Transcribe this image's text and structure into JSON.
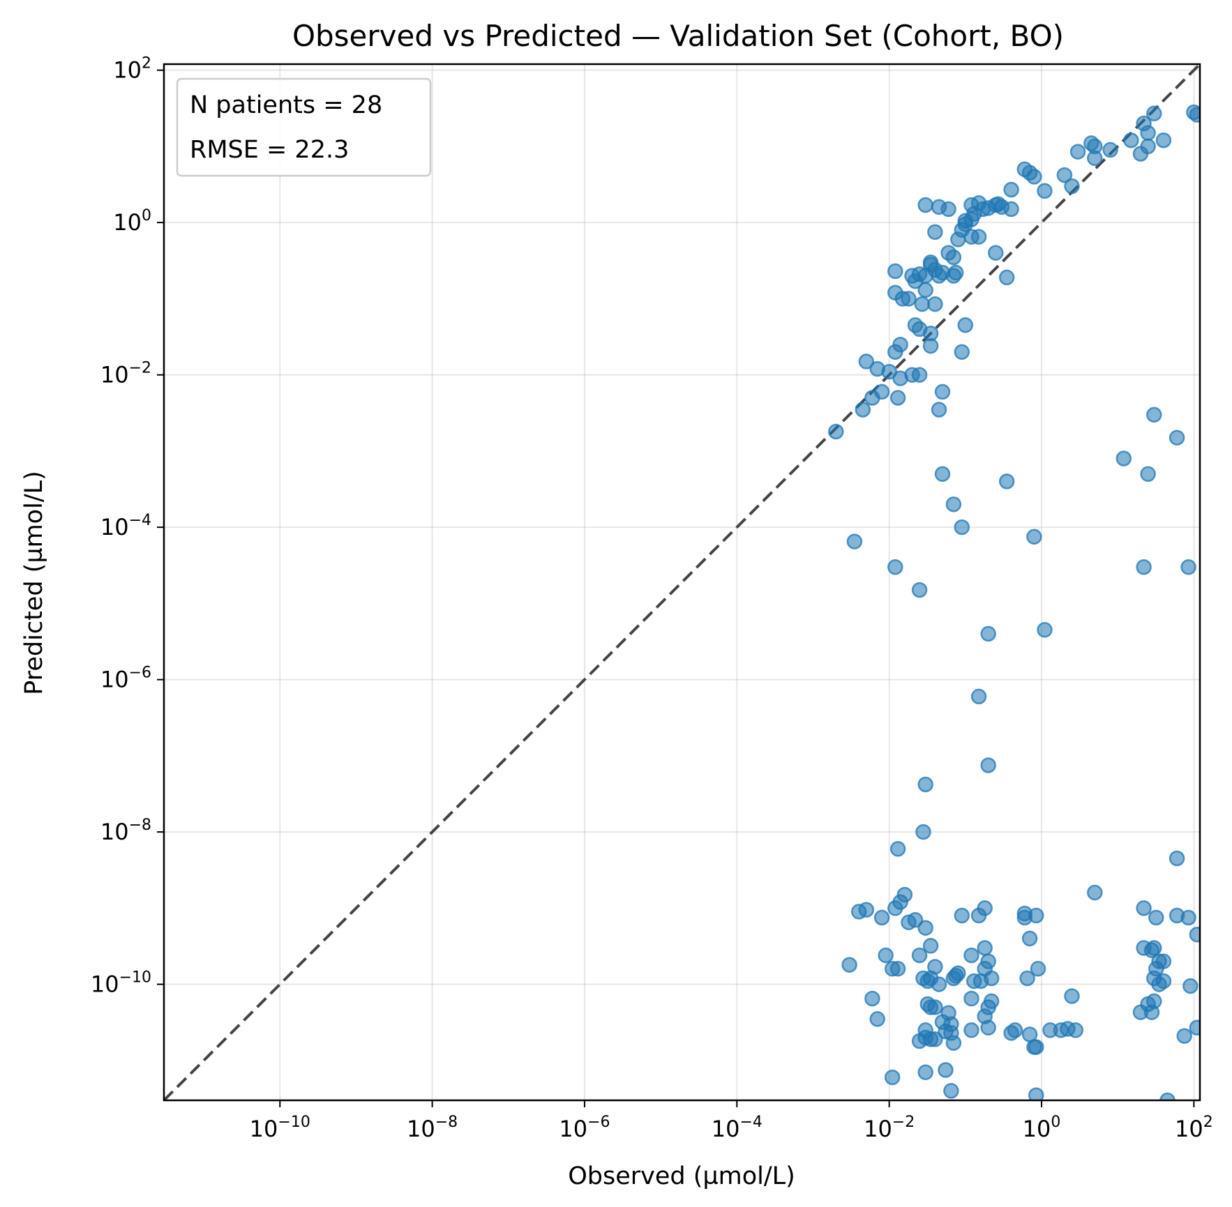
{
  "chart_data": {
    "type": "scatter",
    "title": "Observed vs Predicted — Validation Set (Cohort, BO)",
    "xlabel": "Observed (µmol/L)",
    "ylabel": "Predicted (µmol/L)",
    "xscale": "log",
    "yscale": "log",
    "xlim": [
      3e-12,
      120
    ],
    "ylim": [
      3e-12,
      120
    ],
    "x_ticks": [
      {
        "exp": 1e-10,
        "base": "10",
        "sup": "−10"
      },
      {
        "exp": 1e-08,
        "base": "10",
        "sup": "−8"
      },
      {
        "exp": 1e-06,
        "base": "10",
        "sup": "−6"
      },
      {
        "exp": 0.0001,
        "base": "10",
        "sup": "−4"
      },
      {
        "exp": 0.01,
        "base": "10",
        "sup": "−2"
      },
      {
        "exp": 1,
        "base": "10",
        "sup": "0"
      },
      {
        "exp": 100,
        "base": "10",
        "sup": "2"
      }
    ],
    "y_ticks": [
      {
        "exp": 1e-10,
        "base": "10",
        "sup": "−10"
      },
      {
        "exp": 1e-08,
        "base": "10",
        "sup": "−8"
      },
      {
        "exp": 1e-06,
        "base": "10",
        "sup": "−6"
      },
      {
        "exp": 0.0001,
        "base": "10",
        "sup": "−4"
      },
      {
        "exp": 0.01,
        "base": "10",
        "sup": "−2"
      },
      {
        "exp": 1,
        "base": "10",
        "sup": "0"
      },
      {
        "exp": 100,
        "base": "10",
        "sup": "2"
      }
    ],
    "grid": true,
    "legend": {
      "placement": "top-left",
      "lines": [
        "N patients = 28",
        "RMSE = 22.3"
      ]
    },
    "reference_line": {
      "type": "identity",
      "style": "dashed",
      "color": "#444444"
    },
    "marker_color": "#1f77b4",
    "series": [
      {
        "points": [
          [
            0.002,
            0.0018
          ],
          [
            0.0045,
            0.0035
          ],
          [
            0.006,
            0.005
          ],
          [
            0.008,
            0.006
          ],
          [
            0.005,
            0.015
          ],
          [
            0.007,
            0.012
          ],
          [
            0.01,
            0.011
          ],
          [
            0.013,
            0.005
          ],
          [
            0.014,
            0.009
          ],
          [
            0.012,
            0.02
          ],
          [
            0.014,
            0.025
          ],
          [
            0.02,
            0.01
          ],
          [
            0.025,
            0.01
          ],
          [
            0.022,
            0.045
          ],
          [
            0.025,
            0.04
          ],
          [
            0.035,
            0.024
          ],
          [
            0.035,
            0.035
          ],
          [
            0.05,
            0.006
          ],
          [
            0.045,
            0.0035
          ],
          [
            0.09,
            0.02
          ],
          [
            0.1,
            0.045
          ],
          [
            0.012,
            0.12
          ],
          [
            0.012,
            0.23
          ],
          [
            0.015,
            0.1
          ],
          [
            0.018,
            0.1
          ],
          [
            0.02,
            0.2
          ],
          [
            0.022,
            0.17
          ],
          [
            0.025,
            0.21
          ],
          [
            0.027,
            0.085
          ],
          [
            0.03,
            0.13
          ],
          [
            0.03,
            0.2
          ],
          [
            0.035,
            0.28
          ],
          [
            0.035,
            0.3
          ],
          [
            0.04,
            0.24
          ],
          [
            0.04,
            0.085
          ],
          [
            0.045,
            0.2
          ],
          [
            0.05,
            0.22
          ],
          [
            0.06,
            0.4
          ],
          [
            0.07,
            0.2
          ],
          [
            0.075,
            0.22
          ],
          [
            0.07,
            0.35
          ],
          [
            0.08,
            0.6
          ],
          [
            0.09,
            0.8
          ],
          [
            0.1,
            0.95
          ],
          [
            0.1,
            1.05
          ],
          [
            0.12,
            1.1
          ],
          [
            0.12,
            0.65
          ],
          [
            0.15,
            0.65
          ],
          [
            0.13,
            1.3
          ],
          [
            0.12,
            1.7
          ],
          [
            0.15,
            1.8
          ],
          [
            0.17,
            1.5
          ],
          [
            0.2,
            1.55
          ],
          [
            0.25,
            1.7
          ],
          [
            0.27,
            1.75
          ],
          [
            0.3,
            1.6
          ],
          [
            0.4,
            1.5
          ],
          [
            0.25,
            0.4
          ],
          [
            0.35,
            0.19
          ],
          [
            0.03,
            1.7
          ],
          [
            0.045,
            1.6
          ],
          [
            0.06,
            1.5
          ],
          [
            0.04,
            0.75
          ],
          [
            0.4,
            2.7
          ],
          [
            0.6,
            5
          ],
          [
            0.7,
            4.5
          ],
          [
            0.8,
            4
          ],
          [
            1.1,
            2.6
          ],
          [
            2,
            4.2
          ],
          [
            2.5,
            3
          ],
          [
            3,
            8.5
          ],
          [
            4.5,
            11
          ],
          [
            5,
            10
          ],
          [
            5,
            7
          ],
          [
            8,
            9
          ],
          [
            15,
            12
          ],
          [
            20,
            8
          ],
          [
            22,
            20
          ],
          [
            25,
            15
          ],
          [
            25,
            10
          ],
          [
            30,
            27
          ],
          [
            40,
            12
          ],
          [
            100,
            28
          ],
          [
            110,
            26
          ],
          [
            0.0035,
            6.5e-05
          ],
          [
            0.012,
            3e-05
          ],
          [
            0.025,
            1.5e-05
          ],
          [
            0.05,
            0.0005
          ],
          [
            0.07,
            0.0002
          ],
          [
            0.09,
            0.0001
          ],
          [
            0.35,
            0.0004
          ],
          [
            0.8,
            7.5e-05
          ],
          [
            0.2,
            4e-06
          ],
          [
            1.1,
            4.5e-06
          ],
          [
            0.15,
            6e-07
          ],
          [
            0.2,
            7.5e-08
          ],
          [
            12,
            0.0008
          ],
          [
            25,
            0.0005
          ],
          [
            22,
            3e-05
          ],
          [
            30,
            0.003
          ],
          [
            60,
            0.0015
          ],
          [
            85,
            3e-05
          ]
        ]
      },
      {
        "points": [
          [
            0.03,
            4.2e-08
          ],
          [
            0.028,
            1e-08
          ],
          [
            0.013,
            6e-09
          ],
          [
            0.016,
            1.5e-09
          ],
          [
            0.014,
            1.2e-09
          ],
          [
            0.012,
            1e-09
          ],
          [
            0.018,
            6.5e-10
          ],
          [
            0.022,
            7e-10
          ],
          [
            0.03,
            5.5e-10
          ],
          [
            0.004,
            9e-10
          ],
          [
            0.005,
            9.5e-10
          ],
          [
            0.008,
            7.5e-10
          ],
          [
            0.009,
            2.4e-10
          ],
          [
            0.011,
            1.6e-10
          ],
          [
            0.013,
            1.6e-10
          ],
          [
            0.025,
            2.4e-10
          ],
          [
            0.035,
            3.2e-10
          ],
          [
            0.04,
            1.7e-10
          ],
          [
            0.028,
            1.2e-10
          ],
          [
            0.032,
            1.1e-10
          ],
          [
            0.035,
            1.2e-10
          ],
          [
            0.045,
            1e-10
          ],
          [
            0.003,
            1.8e-10
          ],
          [
            0.006,
            6.5e-11
          ],
          [
            0.007,
            3.5e-11
          ],
          [
            0.032,
            5.5e-11
          ],
          [
            0.035,
            5e-11
          ],
          [
            0.04,
            5e-11
          ],
          [
            0.05,
            3.2e-11
          ],
          [
            0.055,
            2.4e-11
          ],
          [
            0.06,
            4.2e-11
          ],
          [
            0.065,
            3e-11
          ],
          [
            0.065,
            2.3e-11
          ],
          [
            0.07,
            1.7e-11
          ],
          [
            0.03,
            2.5e-11
          ],
          [
            0.025,
            1.8e-11
          ],
          [
            0.03,
            2e-11
          ],
          [
            0.035,
            1.9e-11
          ],
          [
            0.04,
            1.9e-11
          ],
          [
            0.011,
            6e-12
          ],
          [
            0.03,
            7e-12
          ],
          [
            0.055,
            7.5e-12
          ],
          [
            0.065,
            4e-12
          ],
          [
            0.09,
            8e-10
          ],
          [
            0.075,
            1.3e-10
          ],
          [
            0.07,
            1.2e-10
          ],
          [
            0.08,
            1.4e-10
          ],
          [
            0.12,
            2.4e-10
          ],
          [
            0.12,
            6.5e-11
          ],
          [
            0.13,
            1.1e-10
          ],
          [
            0.16,
            1.1e-10
          ],
          [
            0.18,
            1.6e-10
          ],
          [
            0.2,
            2e-10
          ],
          [
            0.18,
            3e-10
          ],
          [
            0.2,
            5e-11
          ],
          [
            0.22,
            1.2e-10
          ],
          [
            0.22,
            6e-11
          ],
          [
            0.2,
            2.7e-11
          ],
          [
            0.18,
            3.8e-11
          ],
          [
            0.12,
            2.5e-11
          ],
          [
            0.15,
            8e-10
          ],
          [
            0.18,
            1e-09
          ],
          [
            0.6,
            8.5e-10
          ],
          [
            0.6,
            7.5e-10
          ],
          [
            0.85,
            8e-10
          ],
          [
            0.7,
            4e-10
          ],
          [
            0.65,
            1.2e-10
          ],
          [
            0.9,
            1.6e-10
          ],
          [
            0.4,
            2.3e-11
          ],
          [
            0.45,
            2.5e-11
          ],
          [
            0.7,
            2.2e-11
          ],
          [
            0.8,
            1.5e-11
          ],
          [
            0.85,
            1.5e-11
          ],
          [
            0.85,
            3.5e-12
          ],
          [
            1.3,
            2.5e-11
          ],
          [
            1.8,
            2.5e-11
          ],
          [
            2.2,
            2.6e-11
          ],
          [
            2.5,
            7e-11
          ],
          [
            2.8,
            2.5e-11
          ],
          [
            5,
            1.6e-09
          ],
          [
            20,
            4.3e-11
          ],
          [
            22,
            1e-09
          ],
          [
            22,
            3e-10
          ],
          [
            25,
            5.5e-11
          ],
          [
            28,
            4.3e-11
          ],
          [
            28,
            2.8e-10
          ],
          [
            30,
            3e-10
          ],
          [
            32,
            7.5e-10
          ],
          [
            30,
            1.2e-10
          ],
          [
            32,
            1.6e-10
          ],
          [
            35,
            2e-10
          ],
          [
            40,
            2e-10
          ],
          [
            35,
            1e-10
          ],
          [
            30,
            6e-11
          ],
          [
            40,
            1.1e-10
          ],
          [
            60,
            8e-10
          ],
          [
            85,
            7.5e-10
          ],
          [
            90,
            9.5e-11
          ],
          [
            75,
            2.1e-11
          ],
          [
            110,
            4.5e-10
          ],
          [
            110,
            2.7e-11
          ],
          [
            45,
            3e-12
          ],
          [
            60,
            4.5e-09
          ]
        ]
      }
    ]
  }
}
